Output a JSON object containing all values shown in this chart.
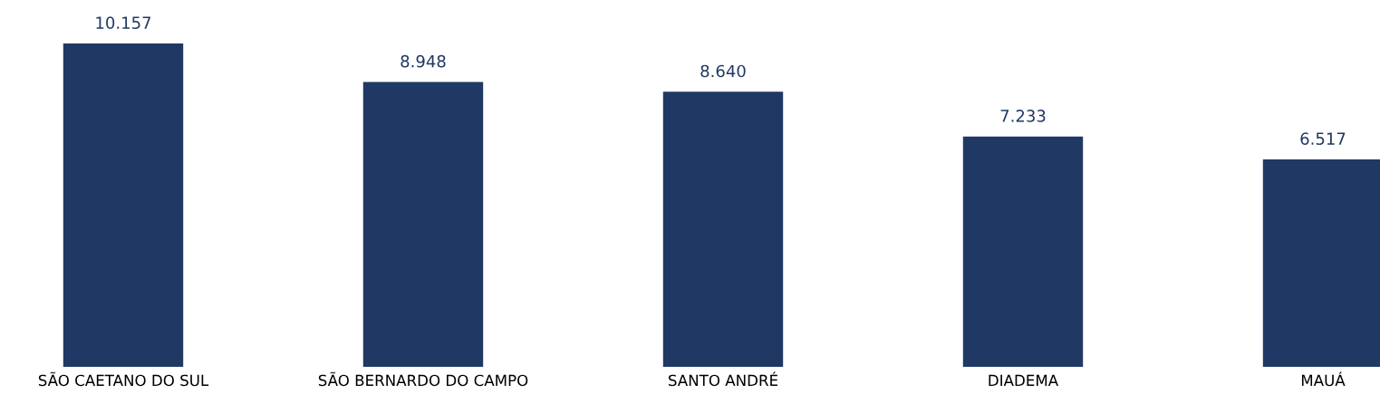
{
  "chart_data": {
    "type": "bar",
    "categories": [
      "SÃO CAETANO DO SUL",
      "SÃO BERNARDO DO CAMPO",
      "SANTO ANDRÉ",
      "DIADEMA",
      "MAUÁ"
    ],
    "values": [
      10157,
      8948,
      8640,
      7233,
      6517
    ],
    "value_labels": [
      "10.157",
      "8.948",
      "8.640",
      "7.233",
      "6.517"
    ],
    "color": "#203864",
    "grid": false,
    "legend": false
  }
}
